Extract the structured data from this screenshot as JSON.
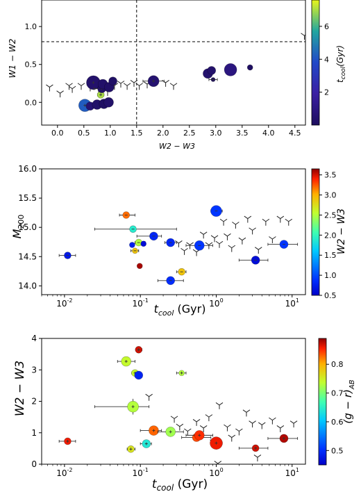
{
  "chart_data": [
    {
      "type": "scatter",
      "xlabel": "W2 − W3",
      "ylabel": "W1 − W2",
      "xlim": [
        -0.3,
        4.7
      ],
      "ylim": [
        -0.3,
        1.35
      ],
      "xscale": "linear",
      "xticks": [
        0.0,
        0.5,
        1.0,
        1.5,
        2.0,
        2.5,
        3.0,
        3.5,
        4.0,
        4.5
      ],
      "xtick_labels": [
        "0.0",
        "0.5",
        "1.0",
        "1.5",
        "2.0",
        "2.5",
        "3.0",
        "3.5",
        "4.0",
        "4.5"
      ],
      "yticks": [
        0.0,
        0.5,
        1.0
      ],
      "ytick_labels": [
        "0.0",
        "0.5",
        "1.0"
      ],
      "reference_lines": {
        "vertical_x": 1.5,
        "horizontal_y": 0.8
      },
      "colorbar": {
        "label": "t_cool(Gyr)",
        "ticks": [
          2,
          4,
          6
        ],
        "min": 0.0,
        "max": 7.6,
        "colormap": "plasma-like"
      },
      "points": [
        {
          "x": 0.52,
          "y": -0.04,
          "c": 4.2,
          "s": 9,
          "ex": 0.05,
          "ey": 0.02
        },
        {
          "x": 0.62,
          "y": -0.05,
          "c": 0.6,
          "s": 6,
          "ex": 0.0,
          "ey": 0.0
        },
        {
          "x": 0.68,
          "y": 0.26,
          "c": 0.35,
          "s": 10,
          "ex": 0.05,
          "ey": 0.04
        },
        {
          "x": 0.75,
          "y": -0.03,
          "c": 0.3,
          "s": 7,
          "ex": 0.0,
          "ey": 0.0
        },
        {
          "x": 0.82,
          "y": 0.1,
          "c": 7.0,
          "s": 5,
          "ex": 0.06,
          "ey": 0.03
        },
        {
          "x": 0.84,
          "y": 0.18,
          "c": 0.2,
          "s": 6,
          "ex": 0.15,
          "ey": 0.03
        },
        {
          "x": 0.86,
          "y": 0.24,
          "c": 0.3,
          "s": 7,
          "ex": 0.0,
          "ey": 0.0
        },
        {
          "x": 0.88,
          "y": -0.02,
          "c": 0.15,
          "s": 7,
          "ex": 0.0,
          "ey": 0.0
        },
        {
          "x": 0.97,
          "y": 0.0,
          "c": 0.3,
          "s": 7,
          "ex": 0.0,
          "ey": 0.0
        },
        {
          "x": 0.98,
          "y": 0.2,
          "c": 0.25,
          "s": 7,
          "ex": 0.0,
          "ey": 0.0
        },
        {
          "x": 1.05,
          "y": 0.28,
          "c": 0.2,
          "s": 6,
          "ex": 0.0,
          "ey": 0.0
        },
        {
          "x": 1.82,
          "y": 0.28,
          "c": 0.5,
          "s": 8,
          "ex": 0.2,
          "ey": 0.03
        },
        {
          "x": 2.85,
          "y": 0.38,
          "c": 0.4,
          "s": 7,
          "ex": 0.0,
          "ey": 0.0
        },
        {
          "x": 2.92,
          "y": 0.42,
          "c": 0.35,
          "s": 6,
          "ex": 0.0,
          "ey": 0.0
        },
        {
          "x": 2.95,
          "y": 0.3,
          "c": 0.1,
          "s": 3,
          "ex": 0.08,
          "ey": 0.02
        },
        {
          "x": 3.28,
          "y": 0.43,
          "c": 0.9,
          "s": 9,
          "ex": 0.0,
          "ey": 0.0
        },
        {
          "x": 3.65,
          "y": 0.46,
          "c": 0.1,
          "s": 4,
          "ex": 0.0,
          "ey": 0.0
        }
      ],
      "upper_limits": [
        {
          "x": -0.15,
          "y": 0.2
        },
        {
          "x": 0.05,
          "y": 0.12
        },
        {
          "x": 0.22,
          "y": 0.22
        },
        {
          "x": 0.28,
          "y": 0.18
        },
        {
          "x": 0.45,
          "y": 0.22
        },
        {
          "x": 0.62,
          "y": 0.2
        },
        {
          "x": 0.78,
          "y": 0.18
        },
        {
          "x": 0.85,
          "y": 0.15
        },
        {
          "x": 0.9,
          "y": 0.22
        },
        {
          "x": 0.95,
          "y": 0.14
        },
        {
          "x": 1.08,
          "y": 0.22
        },
        {
          "x": 1.2,
          "y": 0.25
        },
        {
          "x": 1.32,
          "y": 0.22
        },
        {
          "x": 1.45,
          "y": 0.26
        },
        {
          "x": 1.55,
          "y": 0.22
        },
        {
          "x": 1.7,
          "y": 0.24
        },
        {
          "x": 2.05,
          "y": 0.26
        },
        {
          "x": 2.2,
          "y": 0.22
        },
        {
          "x": 4.68,
          "y": 0.88
        }
      ]
    },
    {
      "type": "scatter",
      "xlabel": "t_cool (Gyr)",
      "ylabel": "M_200",
      "xlim": [
        0.005,
        15
      ],
      "ylim": [
        13.85,
        16.0
      ],
      "xscale": "log",
      "xticks": [
        0.01,
        0.1,
        1,
        10
      ],
      "xtick_labels": [
        "10^-2",
        "10^-1",
        "10^0",
        "10^1"
      ],
      "yticks": [
        14.0,
        14.5,
        15.0,
        15.5,
        16.0
      ],
      "ytick_labels": [
        "14.0",
        "14.5",
        "15.0",
        "15.5",
        "16.0"
      ],
      "colorbar": {
        "label": "W2 − W3",
        "ticks": [
          0.5,
          1.0,
          1.5,
          2.0,
          2.5,
          3.0,
          3.5
        ],
        "min": 0.5,
        "max": 3.65,
        "colormap": "jet"
      },
      "points": [
        {
          "x": 0.011,
          "y": 14.52,
          "c": 0.7,
          "s": 5,
          "ex": [
            0.0025,
            0.003
          ]
        },
        {
          "x": 0.065,
          "y": 15.21,
          "c": 3.2,
          "s": 5,
          "ex": [
            0.012,
            0.02
          ]
        },
        {
          "x": 0.08,
          "y": 14.97,
          "c": 1.9,
          "s": 5,
          "ex": [
            0.055,
            0.22
          ]
        },
        {
          "x": 0.078,
          "y": 14.7,
          "c": 0.75,
          "s": 4,
          "ex": [
            0.0,
            0.0
          ]
        },
        {
          "x": 0.085,
          "y": 14.6,
          "c": 2.9,
          "s": 4,
          "ex": [
            0.01,
            0.01
          ]
        },
        {
          "x": 0.095,
          "y": 14.74,
          "c": 2.5,
          "s": 5,
          "ex": [
            0.01,
            0.02
          ]
        },
        {
          "x": 0.098,
          "y": 14.34,
          "c": 3.6,
          "s": 4,
          "ex": [
            0.0,
            0.0
          ]
        },
        {
          "x": 0.11,
          "y": 14.72,
          "c": 0.6,
          "s": 4,
          "ex": [
            0.0,
            0.0
          ]
        },
        {
          "x": 0.15,
          "y": 14.85,
          "c": 0.8,
          "s": 6,
          "ex": [
            0.06,
            0.04
          ]
        },
        {
          "x": 0.25,
          "y": 14.09,
          "c": 0.85,
          "s": 6,
          "ex": [
            0.08,
            0.12
          ]
        },
        {
          "x": 0.25,
          "y": 14.74,
          "c": 0.8,
          "s": 6,
          "ex": [
            0.04,
            0.05
          ]
        },
        {
          "x": 0.35,
          "y": 14.24,
          "c": 2.9,
          "s": 5,
          "ex": [
            0.05,
            0.05
          ]
        },
        {
          "x": 0.6,
          "y": 14.69,
          "c": 0.9,
          "s": 7,
          "ex": [
            0.2,
            0.3
          ]
        },
        {
          "x": 1.0,
          "y": 15.28,
          "c": 0.9,
          "s": 8,
          "ex": [
            0.15,
            0.2
          ]
        },
        {
          "x": 3.3,
          "y": 14.44,
          "c": 0.6,
          "s": 6,
          "ex": [
            1.3,
            1.5
          ]
        },
        {
          "x": 7.8,
          "y": 14.71,
          "c": 0.9,
          "s": 6,
          "ex": [
            3.0,
            4.0
          ]
        }
      ],
      "upper_limits": [
        {
          "x": 0.32,
          "y": 14.73
        },
        {
          "x": 0.38,
          "y": 14.6
        },
        {
          "x": 0.45,
          "y": 14.7
        },
        {
          "x": 0.55,
          "y": 14.58
        },
        {
          "x": 0.68,
          "y": 14.88
        },
        {
          "x": 0.8,
          "y": 14.7
        },
        {
          "x": 0.95,
          "y": 14.82
        },
        {
          "x": 1.1,
          "y": 14.72
        },
        {
          "x": 1.25,
          "y": 15.1
        },
        {
          "x": 1.4,
          "y": 14.85
        },
        {
          "x": 1.6,
          "y": 14.65
        },
        {
          "x": 1.8,
          "y": 15.05
        },
        {
          "x": 2.2,
          "y": 14.78
        },
        {
          "x": 2.6,
          "y": 15.15
        },
        {
          "x": 3.0,
          "y": 14.95
        },
        {
          "x": 3.6,
          "y": 14.62
        },
        {
          "x": 4.5,
          "y": 15.1
        },
        {
          "x": 5.5,
          "y": 14.8
        },
        {
          "x": 7.0,
          "y": 15.15
        },
        {
          "x": 9.0,
          "y": 15.1
        }
      ]
    },
    {
      "type": "scatter",
      "xlabel": "t_cool (Gyr)",
      "ylabel": "W2 − W3",
      "xlim": [
        0.005,
        15
      ],
      "ylim": [
        0,
        4
      ],
      "xscale": "log",
      "xticks": [
        0.01,
        0.1,
        1,
        10
      ],
      "xtick_labels": [
        "10^-2",
        "10^-1",
        "10^0",
        "10^1"
      ],
      "yticks": [
        0,
        1,
        2,
        3,
        4
      ],
      "ytick_labels": [
        "0",
        "1",
        "2",
        "3",
        "4"
      ],
      "colorbar": {
        "label": "(g − r)_AB",
        "ticks": [
          0.5,
          0.6,
          0.7,
          0.8
        ],
        "min": 0.45,
        "max": 0.89,
        "colormap": "jet"
      },
      "points": [
        {
          "x": 0.011,
          "y": 0.73,
          "c": 0.86,
          "s": 5,
          "ex": [
            0.0025,
            0.003
          ],
          "ey": 0.05
        },
        {
          "x": 0.065,
          "y": 3.27,
          "c": 0.74,
          "s": 7,
          "ex": [
            0.015,
            0.02
          ],
          "ey": 0.08
        },
        {
          "x": 0.075,
          "y": 0.48,
          "c": 0.76,
          "s": 5,
          "ex": [
            0.008,
            0.01
          ],
          "ey": 0.05
        },
        {
          "x": 0.08,
          "y": 1.83,
          "c": 0.73,
          "s": 8,
          "ex": [
            0.055,
            0.05
          ],
          "ey": 0.25
        },
        {
          "x": 0.085,
          "y": 2.9,
          "c": 0.74,
          "s": 5,
          "ex": [
            0.008,
            0.01
          ],
          "ey": 0.05
        },
        {
          "x": 0.095,
          "y": 3.64,
          "c": 0.87,
          "s": 5,
          "ex": [
            0.008,
            0.01
          ],
          "ey": 0.03
        },
        {
          "x": 0.095,
          "y": 2.83,
          "c": 0.49,
          "s": 6,
          "ex": [
            0.0,
            0.0
          ],
          "ey": 0.0
        },
        {
          "x": 0.12,
          "y": 0.65,
          "c": 0.64,
          "s": 6,
          "ex": [
            0.02,
            0.02
          ],
          "ey": 0.1
        },
        {
          "x": 0.15,
          "y": 1.07,
          "c": 0.83,
          "s": 7,
          "ex": [
            0.05,
            0.04
          ],
          "ey": 0.12
        },
        {
          "x": 0.25,
          "y": 1.03,
          "c": 0.72,
          "s": 7,
          "ex": [
            0.08,
            0.12
          ],
          "ey": 0.15
        },
        {
          "x": 0.35,
          "y": 2.9,
          "c": 0.73,
          "s": 4,
          "ex": [
            0.05,
            0.05
          ],
          "ey": 0.05
        },
        {
          "x": 0.55,
          "y": 0.85,
          "c": 0.84,
          "s": 6,
          "ex": [
            0.2,
            0.3
          ],
          "ey": 0.1
        },
        {
          "x": 0.6,
          "y": 0.92,
          "c": 0.85,
          "s": 7,
          "ex": [
            0.2,
            0.3
          ],
          "ey": 0.1
        },
        {
          "x": 1.0,
          "y": 0.67,
          "c": 0.86,
          "s": 9,
          "ex": [
            0.15,
            0.2
          ],
          "ey": 0.2
        },
        {
          "x": 3.3,
          "y": 0.51,
          "c": 0.87,
          "s": 5,
          "ex": [
            1.3,
            1.5
          ],
          "ey": 0.1
        },
        {
          "x": 7.8,
          "y": 0.82,
          "c": 0.88,
          "s": 6,
          "ex": [
            3.0,
            4.0
          ],
          "ey": 0.1
        }
      ],
      "upper_limits": [
        {
          "x": 0.13,
          "y": 2.15
        },
        {
          "x": 0.28,
          "y": 1.45
        },
        {
          "x": 0.33,
          "y": 1.2
        },
        {
          "x": 0.42,
          "y": 1.05
        },
        {
          "x": 0.55,
          "y": 1.35
        },
        {
          "x": 0.68,
          "y": 1.15
        },
        {
          "x": 0.8,
          "y": 1.5
        },
        {
          "x": 0.92,
          "y": 0.7
        },
        {
          "x": 1.05,
          "y": 0.02
        },
        {
          "x": 1.1,
          "y": 1.88
        },
        {
          "x": 1.4,
          "y": 1.18
        },
        {
          "x": 1.6,
          "y": 0.85
        },
        {
          "x": 2.0,
          "y": 1.05
        },
        {
          "x": 2.5,
          "y": 1.65
        },
        {
          "x": 3.0,
          "y": 1.3
        },
        {
          "x": 3.5,
          "y": 0.22
        },
        {
          "x": 4.0,
          "y": 1.25
        },
        {
          "x": 5.5,
          "y": 1.4
        },
        {
          "x": 7.0,
          "y": 1.15
        },
        {
          "x": 10.5,
          "y": 1.3
        }
      ]
    }
  ]
}
